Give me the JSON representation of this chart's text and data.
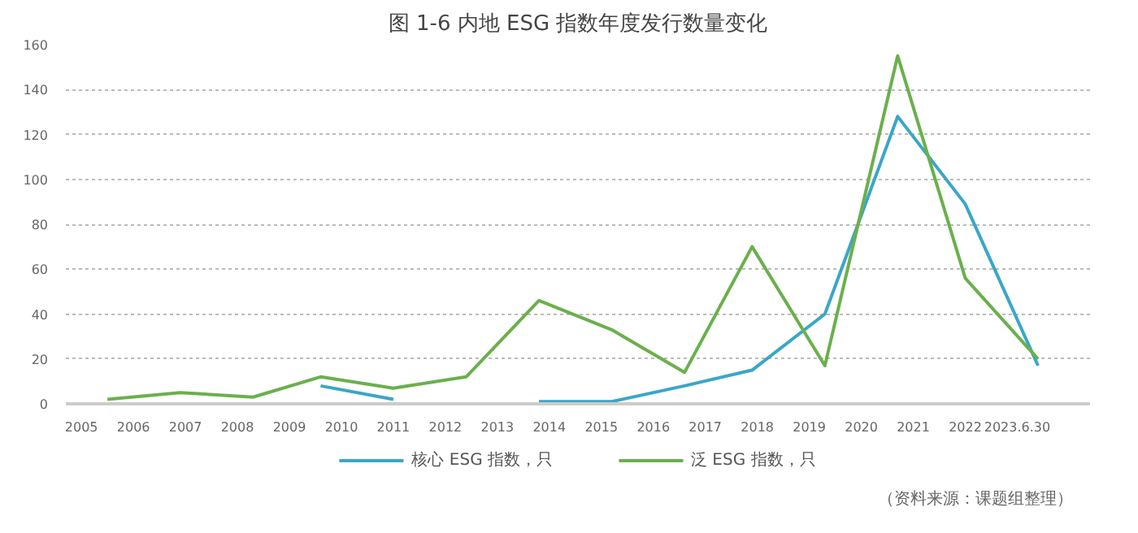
{
  "chart_data": {
    "type": "line",
    "title": "图 1-6 内地 ESG 指数年度发行数量变化",
    "x": [
      2005.5,
      2006.9,
      2008.3,
      2009.6,
      2011.0,
      2012.4,
      2013.8,
      2015.2,
      2016.6,
      2017.9,
      2019.3,
      2020.7,
      2022.0,
      2023.4
    ],
    "series": [
      {
        "name": "核心 ESG 指数，只",
        "color": "#3aa6c8",
        "values": [
          null,
          null,
          null,
          8,
          2,
          null,
          1,
          1,
          8,
          15,
          40,
          128,
          89,
          17
        ]
      },
      {
        "name": "泛 ESG 指数，只",
        "color": "#6ab04c",
        "values": [
          2,
          5,
          3,
          12,
          7,
          12,
          46,
          33,
          14,
          70,
          17,
          155,
          56,
          20
        ]
      }
    ],
    "xlim": [
      2004.7,
      2024.4
    ],
    "xticks": [
      2005,
      2006,
      2007,
      2008,
      2009,
      2010,
      2011,
      2012,
      2013,
      2014,
      2015,
      2016,
      2017,
      2018,
      2019,
      2020,
      2021,
      2022,
      {
        "value": 2023,
        "label": "2023.6.30"
      }
    ],
    "ylim": [
      0,
      160
    ],
    "yticks": [
      0,
      20,
      40,
      60,
      80,
      100,
      120,
      140,
      160
    ],
    "grid": "y",
    "legend": "bottom",
    "marker": "none",
    "line_style": "solid",
    "annotations": [
      "（资料来源：课题组整理）"
    ]
  }
}
